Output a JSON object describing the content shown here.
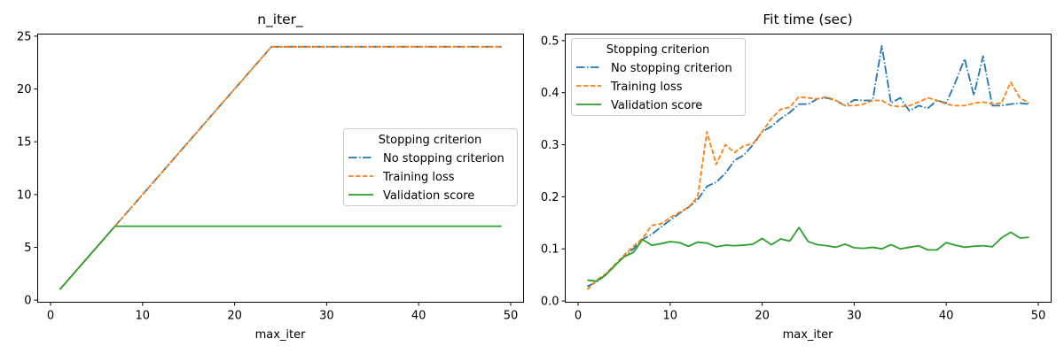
{
  "chart_data": [
    {
      "type": "line",
      "title": "n_iter_",
      "xlabel": "max_iter",
      "ylabel": "",
      "xlim": [
        -1.4,
        51.4
      ],
      "ylim": [
        -0.2,
        25.2
      ],
      "xticks": [
        0,
        10,
        20,
        30,
        40,
        50
      ],
      "yticks": [
        0,
        5,
        10,
        15,
        20,
        25
      ],
      "xtick_labels": [
        "0",
        "10",
        "20",
        "30",
        "40",
        "50"
      ],
      "ytick_labels": [
        "0",
        "5",
        "10",
        "15",
        "20",
        "25"
      ],
      "grid": false,
      "legend": {
        "title": "Stopping criterion",
        "placement": "center-right"
      },
      "x": [
        1,
        2,
        3,
        4,
        5,
        6,
        7,
        8,
        9,
        10,
        11,
        12,
        13,
        14,
        15,
        16,
        17,
        18,
        19,
        20,
        21,
        22,
        23,
        24,
        25,
        26,
        27,
        28,
        29,
        30,
        31,
        32,
        33,
        34,
        35,
        36,
        37,
        38,
        39,
        40,
        41,
        42,
        43,
        44,
        45,
        46,
        47,
        48,
        49
      ],
      "series": [
        {
          "name": "No stopping criterion",
          "color": "#1f77b4",
          "style": "dashdot",
          "values": [
            1,
            2,
            3,
            4,
            5,
            6,
            7,
            8,
            9,
            10,
            11,
            12,
            13,
            14,
            15,
            16,
            17,
            18,
            19,
            20,
            21,
            22,
            23,
            24,
            24,
            24,
            24,
            24,
            24,
            24,
            24,
            24,
            24,
            24,
            24,
            24,
            24,
            24,
            24,
            24,
            24,
            24,
            24,
            24,
            24,
            24,
            24,
            24,
            24
          ]
        },
        {
          "name": "Training loss",
          "color": "#ff7f0e",
          "style": "dashed",
          "values": [
            1,
            2,
            3,
            4,
            5,
            6,
            7,
            8,
            9,
            10,
            11,
            12,
            13,
            14,
            15,
            16,
            17,
            18,
            19,
            20,
            21,
            22,
            23,
            24,
            24,
            24,
            24,
            24,
            24,
            24,
            24,
            24,
            24,
            24,
            24,
            24,
            24,
            24,
            24,
            24,
            24,
            24,
            24,
            24,
            24,
            24,
            24,
            24,
            24
          ]
        },
        {
          "name": "Validation score",
          "color": "#2ca02c",
          "style": "solid",
          "values": [
            1,
            2,
            3,
            4,
            5,
            6,
            7,
            7,
            7,
            7,
            7,
            7,
            7,
            7,
            7,
            7,
            7,
            7,
            7,
            7,
            7,
            7,
            7,
            7,
            7,
            7,
            7,
            7,
            7,
            7,
            7,
            7,
            7,
            7,
            7,
            7,
            7,
            7,
            7,
            7,
            7,
            7,
            7,
            7,
            7,
            7,
            7,
            7,
            7
          ]
        }
      ]
    },
    {
      "type": "line",
      "title": "Fit time (sec)",
      "xlabel": "max_iter",
      "ylabel": "",
      "xlim": [
        -1.4,
        51.4
      ],
      "ylim": [
        -0.0025,
        0.5125
      ],
      "xticks": [
        0,
        10,
        20,
        30,
        40,
        50
      ],
      "yticks": [
        0.0,
        0.1,
        0.2,
        0.3,
        0.4,
        0.5
      ],
      "xtick_labels": [
        "0",
        "10",
        "20",
        "30",
        "40",
        "50"
      ],
      "ytick_labels": [
        "0.0",
        "0.1",
        "0.2",
        "0.3",
        "0.4",
        "0.5"
      ],
      "grid": false,
      "legend": {
        "title": "Stopping criterion",
        "placement": "upper-left"
      },
      "x": [
        1,
        2,
        3,
        4,
        5,
        6,
        7,
        8,
        9,
        10,
        11,
        12,
        13,
        14,
        15,
        16,
        17,
        18,
        19,
        20,
        21,
        22,
        23,
        24,
        25,
        26,
        27,
        28,
        29,
        30,
        31,
        32,
        33,
        34,
        35,
        36,
        37,
        38,
        39,
        40,
        41,
        42,
        43,
        44,
        45,
        46,
        47,
        48,
        49
      ],
      "series": [
        {
          "name": "No stopping criterion",
          "color": "#1f77b4",
          "style": "dashdot",
          "values": [
            0.028,
            0.036,
            0.05,
            0.068,
            0.085,
            0.1,
            0.118,
            0.128,
            0.142,
            0.155,
            0.168,
            0.18,
            0.195,
            0.22,
            0.228,
            0.245,
            0.27,
            0.28,
            0.3,
            0.325,
            0.335,
            0.35,
            0.362,
            0.378,
            0.378,
            0.388,
            0.39,
            0.385,
            0.375,
            0.386,
            0.385,
            0.385,
            0.49,
            0.38,
            0.39,
            0.365,
            0.375,
            0.37,
            0.385,
            0.38,
            0.42,
            0.465,
            0.395,
            0.47,
            0.375,
            0.375,
            0.378,
            0.38,
            0.378
          ]
        },
        {
          "name": "Training loss",
          "color": "#ff7f0e",
          "style": "dashed",
          "values": [
            0.022,
            0.04,
            0.052,
            0.07,
            0.088,
            0.105,
            0.12,
            0.145,
            0.148,
            0.16,
            0.17,
            0.18,
            0.2,
            0.325,
            0.262,
            0.3,
            0.285,
            0.298,
            0.302,
            0.325,
            0.35,
            0.368,
            0.372,
            0.392,
            0.39,
            0.388,
            0.392,
            0.385,
            0.375,
            0.375,
            0.378,
            0.385,
            0.385,
            0.375,
            0.373,
            0.375,
            0.382,
            0.39,
            0.385,
            0.378,
            0.375,
            0.375,
            0.38,
            0.382,
            0.378,
            0.38,
            0.42,
            0.39,
            0.38
          ]
        },
        {
          "name": "Validation score",
          "color": "#2ca02c",
          "style": "solid",
          "values": [
            0.04,
            0.038,
            0.05,
            0.068,
            0.085,
            0.093,
            0.118,
            0.107,
            0.11,
            0.114,
            0.112,
            0.105,
            0.113,
            0.111,
            0.104,
            0.107,
            0.106,
            0.107,
            0.109,
            0.12,
            0.108,
            0.119,
            0.115,
            0.141,
            0.114,
            0.108,
            0.106,
            0.103,
            0.109,
            0.102,
            0.101,
            0.103,
            0.1,
            0.108,
            0.1,
            0.103,
            0.106,
            0.098,
            0.098,
            0.112,
            0.107,
            0.103,
            0.105,
            0.106,
            0.104,
            0.121,
            0.132,
            0.121,
            0.122
          ]
        }
      ]
    }
  ]
}
